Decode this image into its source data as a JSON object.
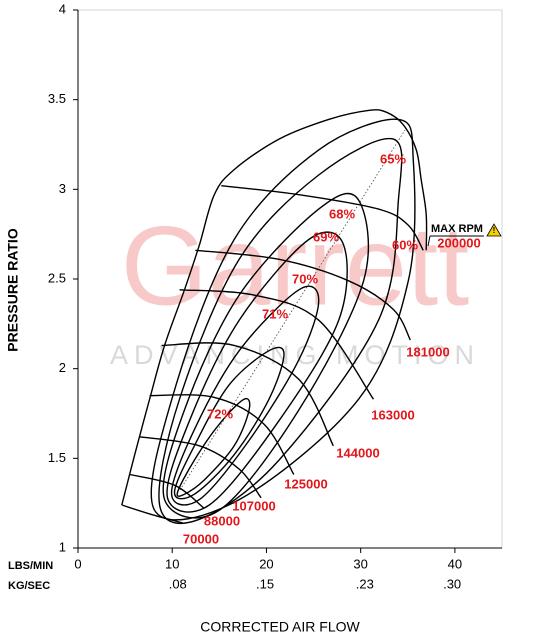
{
  "chart_data": {
    "type": "compressor_map",
    "xlabel": "CORRECTED AIR FLOW",
    "ylabel": "PRESSURE RATIO",
    "x_unit_label": "LBS/MIN",
    "x2_unit_label": "KG/SEC",
    "xlim": [
      0,
      45
    ],
    "xticks": [
      0,
      10,
      20,
      30,
      40
    ],
    "x2lim": [
      0,
      0.34
    ],
    "x2ticks": [
      {
        "value": 0.08,
        "label": ".08"
      },
      {
        "value": 0.15,
        "label": ".15"
      },
      {
        "value": 0.23,
        "label": ".23"
      },
      {
        "value": 0.3,
        "label": ".30"
      }
    ],
    "ylim": [
      1,
      4
    ],
    "yticks": [
      1,
      1.5,
      2,
      2.5,
      3,
      3.5,
      4
    ],
    "line_color": "#000000",
    "label_color": "#e3161b",
    "watermark": "Garrett",
    "watermark_tagline": "ADVANCING MOTION",
    "max_rpm_label": "MAX RPM",
    "surge_line": {
      "x": [
        4.65,
        6.02,
        7.6,
        9.19,
        11.3,
        12.88,
        14.47,
        16.58,
        21.33,
        26.61,
        30.83,
        32.73,
        34.53,
        35.9,
        36.43,
        36.96,
        36.96
      ],
      "y": [
        1.24,
        1.52,
        1.83,
        2.13,
        2.44,
        2.69,
        2.97,
        3.11,
        3.28,
        3.39,
        3.44,
        3.43,
        3.36,
        3.22,
        3.05,
        2.86,
        2.66
      ]
    },
    "speed_lines": [
      {
        "name": "70000",
        "x": [
          4.65,
          7.6,
          11.09
        ],
        "y": [
          1.24,
          1.19,
          1.14
        ]
      },
      {
        "name": "88000",
        "x": [
          5.49,
          10.24,
          13.41
        ],
        "y": [
          1.41,
          1.35,
          1.22
        ]
      },
      {
        "name": "107000",
        "x": [
          6.55,
          12.88,
          17.11,
          19.43
        ],
        "y": [
          1.62,
          1.57,
          1.44,
          1.28
        ]
      },
      {
        "name": "125000",
        "x": [
          7.6,
          14.47,
          19.75,
          22.9
        ],
        "y": [
          1.85,
          1.84,
          1.69,
          1.41
        ]
      },
      {
        "name": "144000",
        "x": [
          8.87,
          16.58,
          23.44,
          27.1
        ],
        "y": [
          2.13,
          2.13,
          1.94,
          1.57
        ]
      },
      {
        "name": "163000",
        "x": [
          10.77,
          18.69,
          25.55,
          31.36
        ],
        "y": [
          2.44,
          2.41,
          2.27,
          1.83
        ]
      },
      {
        "name": "181000",
        "x": [
          12.46,
          21.33,
          28.72,
          33.47,
          35.27
        ],
        "y": [
          2.66,
          2.61,
          2.49,
          2.33,
          2.16
        ]
      },
      {
        "name": "200000",
        "x": [
          15.21,
          23.44,
          31.89,
          35.06,
          36.64
        ],
        "y": [
          3.02,
          2.97,
          2.89,
          2.8,
          2.66
        ]
      }
    ],
    "efficiency_islands": [
      {
        "name": "72%",
        "x": [
          10.56,
          12.35,
          14.99,
          17.63,
          18.16,
          16.58,
          13.41,
          11.3
        ],
        "y": [
          1.31,
          1.49,
          1.69,
          1.83,
          1.77,
          1.57,
          1.38,
          1.3
        ]
      },
      {
        "name": "71%",
        "x": [
          10.24,
          12.35,
          16.05,
          20.27,
          21.86,
          20.27,
          16.58,
          12.35
        ],
        "y": [
          1.31,
          1.57,
          1.91,
          2.1,
          2.08,
          1.83,
          1.52,
          1.3
        ]
      },
      {
        "name": "70%",
        "x": [
          9.93,
          12.35,
          17.11,
          23.44,
          25.55,
          23.44,
          18.16,
          12.88
        ],
        "y": [
          1.3,
          1.66,
          2.1,
          2.44,
          2.38,
          2.05,
          1.6,
          1.27
        ]
      },
      {
        "name": "69%",
        "x": [
          9.5,
          11.83,
          17.11,
          24.5,
          28.19,
          27.67,
          21.33,
          13.94
        ],
        "y": [
          1.28,
          1.71,
          2.27,
          2.72,
          2.69,
          2.27,
          1.71,
          1.24
        ]
      },
      {
        "name": "68%",
        "x": [
          9.19,
          11.3,
          17.11,
          25.55,
          29.78,
          30.31,
          23.44,
          14.99
        ],
        "y": [
          1.27,
          1.77,
          2.41,
          2.89,
          2.94,
          2.49,
          1.77,
          1.21
        ]
      },
      {
        "name": "65%",
        "x": [
          8.66,
          10.77,
          17.11,
          25.55,
          33.47,
          34.0,
          31.89,
          21.33,
          12.88
        ],
        "y": [
          1.24,
          1.83,
          2.61,
          3.08,
          3.28,
          2.94,
          2.27,
          1.49,
          1.16
        ]
      },
      {
        "name": "60%",
        "x": [
          8.13,
          10.24,
          16.58,
          25.55,
          34.0,
          35.59,
          35.06,
          29.78,
          17.11
        ],
        "y": [
          1.21,
          1.88,
          2.72,
          3.22,
          3.39,
          3.16,
          2.49,
          1.83,
          1.27
        ]
      }
    ]
  }
}
